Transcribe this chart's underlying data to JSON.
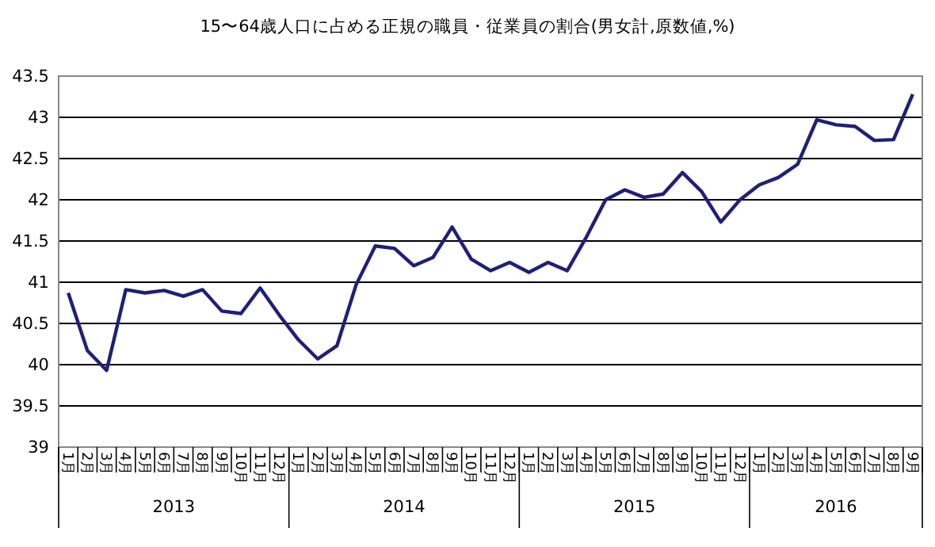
{
  "chart_data": {
    "type": "line",
    "title": "15〜64歳人口に占める正規の職員・従業員の割合(男女計,原数値,%)",
    "categories": [
      "1月",
      "2月",
      "3月",
      "4月",
      "5月",
      "6月",
      "7月",
      "8月",
      "9月",
      "10月",
      "11月",
      "12月",
      "1月",
      "2月",
      "3月",
      "4月",
      "5月",
      "6月",
      "7月",
      "8月",
      "9月",
      "10月",
      "11月",
      "12月",
      "1月",
      "2月",
      "3月",
      "4月",
      "5月",
      "6月",
      "7月",
      "8月",
      "9月",
      "10月",
      "11月",
      "12月",
      "1月",
      "2月",
      "3月",
      "4月",
      "5月",
      "6月",
      "7月",
      "8月",
      "9月"
    ],
    "series": [
      {
        "color": "#1f1f7a",
        "values": [
          40.87,
          40.17,
          39.93,
          40.91,
          40.87,
          40.9,
          40.83,
          40.91,
          40.65,
          40.62,
          40.93,
          40.6,
          40.3,
          40.07,
          40.23,
          40.97,
          41.44,
          41.41,
          41.2,
          41.3,
          41.67,
          41.28,
          41.14,
          41.24,
          41.12,
          41.24,
          41.14,
          41.55,
          42.0,
          42.12,
          42.03,
          42.07,
          42.33,
          42.1,
          41.73,
          42.0,
          42.18,
          42.27,
          42.43,
          42.97,
          42.91,
          42.89,
          42.72,
          42.73,
          43.28
        ]
      }
    ],
    "annotations": [
      "2013",
      "2014",
      "2015",
      "2016"
    ],
    "ylim": [
      39,
      43.5
    ],
    "yticks": [
      39,
      39.5,
      40,
      40.5,
      41,
      41.5,
      42,
      42.5,
      43,
      43.5
    ],
    "grid": "y",
    "marker": "none",
    "line_style": "solid"
  }
}
